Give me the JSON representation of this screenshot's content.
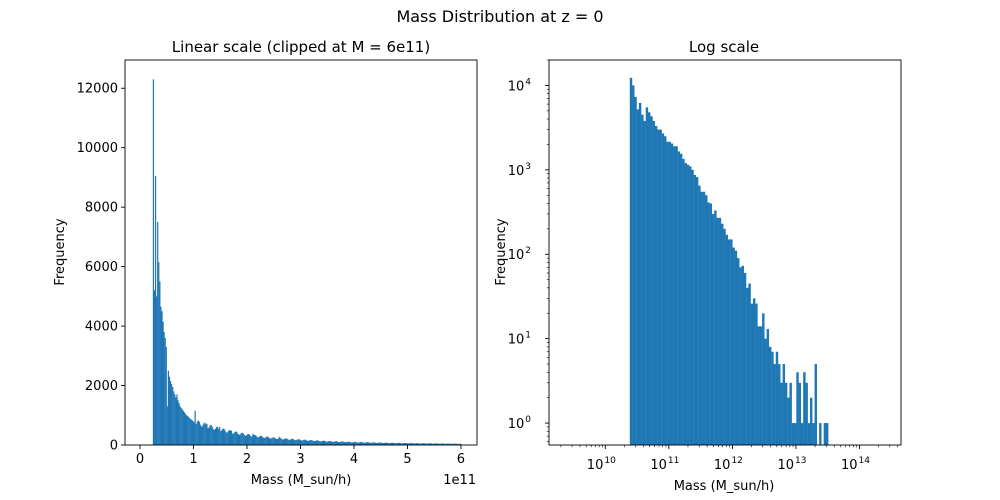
{
  "figure": {
    "suptitle": "Mass Distribution at z = 0"
  },
  "chart_data": [
    {
      "type": "bar",
      "title": "Linear scale (clipped at M = 6e11)",
      "xlabel": "Mass (M_sun/h)",
      "ylabel": "Frequency",
      "x_offset_label": "1e11",
      "xlim": [
        -0.28,
        6.3
      ],
      "ylim": [
        0,
        12950
      ],
      "xticks": [
        0,
        1,
        2,
        3,
        4,
        5,
        6
      ],
      "xtick_labels": [
        "0",
        "1",
        "2",
        "3",
        "4",
        "5",
        "6"
      ],
      "yticks": [
        0,
        2000,
        4000,
        6000,
        8000,
        10000,
        12000
      ],
      "ytick_labels": [
        "0",
        "2000",
        "4000",
        "6000",
        "8000",
        "10000",
        "12000"
      ],
      "bar_color": "#1f77b4",
      "bin_width_units": 0.02,
      "bins": [
        {
          "x0": 0.24,
          "value": 12300
        },
        {
          "x0": 0.26,
          "value": 5200
        },
        {
          "x0": 0.28,
          "value": 9050
        },
        {
          "x0": 0.3,
          "value": 5000
        },
        {
          "x0": 0.32,
          "value": 7500
        },
        {
          "x0": 0.34,
          "value": 6150
        },
        {
          "x0": 0.36,
          "value": 5500
        },
        {
          "x0": 0.38,
          "value": 4650
        },
        {
          "x0": 0.4,
          "value": 4500
        },
        {
          "x0": 0.42,
          "value": 4150
        },
        {
          "x0": 0.44,
          "value": 3800
        },
        {
          "x0": 0.46,
          "value": 3600
        },
        {
          "x0": 0.48,
          "value": 3300
        },
        {
          "x0": 0.5,
          "value": 1300
        },
        {
          "x0": 0.52,
          "value": 2500
        },
        {
          "x0": 0.54,
          "value": 2300
        },
        {
          "x0": 0.56,
          "value": 2150
        },
        {
          "x0": 0.58,
          "value": 2050
        },
        {
          "x0": 0.6,
          "value": 1950
        },
        {
          "x0": 0.62,
          "value": 1800
        },
        {
          "x0": 0.64,
          "value": 1700
        },
        {
          "x0": 0.66,
          "value": 1600
        },
        {
          "x0": 0.68,
          "value": 1700
        },
        {
          "x0": 0.7,
          "value": 1500
        },
        {
          "x0": 0.72,
          "value": 1400
        },
        {
          "x0": 0.74,
          "value": 1300
        },
        {
          "x0": 0.76,
          "value": 1250
        },
        {
          "x0": 0.78,
          "value": 1200
        },
        {
          "x0": 0.8,
          "value": 1150
        },
        {
          "x0": 0.82,
          "value": 1100
        },
        {
          "x0": 0.84,
          "value": 1050
        },
        {
          "x0": 0.86,
          "value": 1000
        },
        {
          "x0": 0.88,
          "value": 980
        },
        {
          "x0": 0.9,
          "value": 940
        },
        {
          "x0": 0.92,
          "value": 900
        },
        {
          "x0": 0.94,
          "value": 870
        },
        {
          "x0": 0.96,
          "value": 840
        },
        {
          "x0": 0.98,
          "value": 810
        }
      ],
      "tail": {
        "start": 1.0,
        "end": 6.0,
        "decay_points": [
          [
            1.0,
            790
          ],
          [
            1.5,
            520
          ],
          [
            2.0,
            340
          ],
          [
            2.5,
            230
          ],
          [
            3.0,
            170
          ],
          [
            3.5,
            125
          ],
          [
            4.0,
            95
          ],
          [
            4.5,
            75
          ],
          [
            5.0,
            60
          ],
          [
            5.5,
            50
          ],
          [
            6.0,
            40
          ]
        ],
        "spikes": [
          [
            1.02,
            1150
          ],
          [
            1.24,
            720
          ],
          [
            1.48,
            600
          ],
          [
            1.7,
            480
          ],
          [
            2.1,
            380
          ],
          [
            2.6,
            280
          ],
          [
            2.95,
            230
          ]
        ]
      }
    },
    {
      "type": "bar",
      "title": "Log scale",
      "xlabel": "Mass (M_sun/h)",
      "ylabel": "Frequency",
      "xscale": "log",
      "yscale": "log",
      "xlim": [
        1300000000.0,
        450000000000000.0
      ],
      "ylim": [
        0.55,
        20000
      ],
      "xticks": [
        10000000000.0,
        100000000000.0,
        1000000000000.0,
        10000000000000.0,
        100000000000000.0
      ],
      "xtick_labels": [
        [
          "10",
          "10"
        ],
        [
          "10",
          "11"
        ],
        [
          "10",
          "12"
        ],
        [
          "10",
          "13"
        ],
        [
          "10",
          "14"
        ]
      ],
      "yticks": [
        1,
        10,
        100,
        1000,
        10000
      ],
      "ytick_labels": [
        [
          "10",
          "0"
        ],
        [
          "10",
          "1"
        ],
        [
          "10",
          "2"
        ],
        [
          "10",
          "3"
        ],
        [
          "10",
          "4"
        ]
      ],
      "bar_color": "#1f77b4",
      "bins_log10_start": 10.385,
      "bins_log10_width": 0.0359,
      "values": [
        12300,
        10000,
        7300,
        5200,
        6200,
        4500,
        3800,
        5500,
        4800,
        4300,
        3800,
        3300,
        3000,
        3000,
        2700,
        2500,
        2150,
        2150,
        2050,
        1900,
        1900,
        1650,
        1550,
        1350,
        1200,
        1150,
        1100,
        1000,
        870,
        820,
        650,
        550,
        550,
        500,
        410,
        400,
        300,
        330,
        270,
        270,
        230,
        200,
        170,
        150,
        150,
        120,
        110,
        90,
        70,
        73,
        60,
        40,
        45,
        26,
        30,
        26,
        14,
        14,
        20,
        10,
        13,
        8,
        7,
        5,
        7,
        5,
        3,
        5,
        3,
        2,
        3,
        1,
        1,
        4,
        3,
        1,
        4,
        3,
        1,
        2,
        1,
        5,
        0,
        1,
        0,
        1,
        1
      ],
      "tick_minor": true
    }
  ]
}
